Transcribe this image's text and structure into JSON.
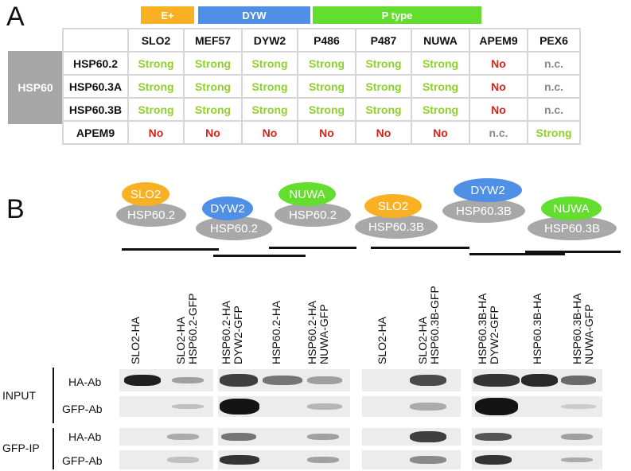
{
  "panel_a": {
    "letter": "A",
    "groups": [
      "E+",
      "DYW",
      "P type"
    ],
    "row_group": "HSP60",
    "columns": [
      "SLO2",
      "MEF57",
      "DYW2",
      "P486",
      "P487",
      "NUWA",
      "APEM9",
      "PEX6"
    ],
    "rows": [
      {
        "label": "HSP60.2",
        "cells": [
          "Strong",
          "Strong",
          "Strong",
          "Strong",
          "Strong",
          "Strong",
          "No",
          "n.c."
        ]
      },
      {
        "label": "HSP60.3A",
        "cells": [
          "Strong",
          "Strong",
          "Strong",
          "Strong",
          "Strong",
          "Strong",
          "No",
          "n.c."
        ]
      },
      {
        "label": "HSP60.3B",
        "cells": [
          "Strong",
          "Strong",
          "Strong",
          "Strong",
          "Strong",
          "Strong",
          "No",
          "n.c."
        ]
      },
      {
        "label": "APEM9",
        "cells": [
          "No",
          "No",
          "No",
          "No",
          "No",
          "No",
          "n.c.",
          "Strong"
        ]
      }
    ],
    "colors": {
      "e_plus": "#f9b123",
      "dyw": "#4f8fe6",
      "p_type": "#63dd2e",
      "strong": "#8ed12b",
      "no": "#d6241c",
      "nc": "#8a8a8a",
      "hsp60": "#a6a6a6"
    }
  },
  "panel_b": {
    "letter": "B",
    "complexes": [
      {
        "top": "SLO2",
        "bottom": "HSP60.2"
      },
      {
        "top": "DYW2",
        "bottom": "HSP60.2"
      },
      {
        "top": "NUWA",
        "bottom": "HSP60.2"
      },
      {
        "top": "SLO2",
        "bottom": "HSP60.3B"
      },
      {
        "top": "DYW2",
        "bottom": "HSP60.3B"
      },
      {
        "top": "NUWA",
        "bottom": "HSP60.3B"
      }
    ],
    "lanes": [
      "SLO2-HA",
      "SLO2-HA\nHSP60.2-GFP",
      "HSP60.2-HA\nDYW2-GFP",
      "HSP60.2-HA",
      "HSP60.2-HA\nNUWA-GFP",
      "SLO2-HA",
      "SLO2-HA\nHSP60.3B-GFP",
      "HSP60.3B-HA\nDYW2-GFP",
      "HSP60.3B-HA",
      "HSP60.3B-HA\nNUWA-GFP"
    ],
    "sections": [
      "INPUT",
      "GFP-IP"
    ],
    "blot_rows": [
      "HA-Ab",
      "GFP-Ab",
      "HA-Ab",
      "GFP-Ab"
    ]
  }
}
